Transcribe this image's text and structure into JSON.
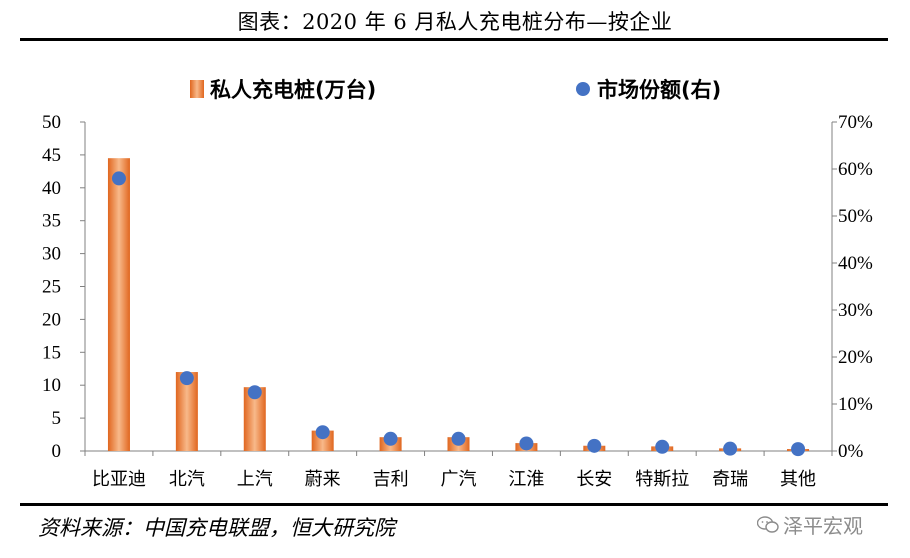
{
  "header": {
    "title": "图表：2020 年 6 月私人充电桩分布—按企业"
  },
  "footer": {
    "source": "资料来源：中国充电联盟，恒大研究院",
    "watermark": "泽平宏观"
  },
  "colors": {
    "bar": "#ed7d31",
    "bar_light": "#f8b98a",
    "marker": "#4472c4"
  },
  "chart_data": {
    "type": "bar",
    "categories": [
      "比亚迪",
      "北汽",
      "上汽",
      "蔚来",
      "吉利",
      "广汽",
      "江淮",
      "长安",
      "特斯拉",
      "奇瑞",
      "其他"
    ],
    "series": [
      {
        "name": "私人充电桩(万台)",
        "type": "bar",
        "axis": "left",
        "values": [
          44.5,
          12.0,
          9.7,
          3.1,
          2.1,
          2.1,
          1.2,
          0.8,
          0.7,
          0.4,
          0.3
        ]
      },
      {
        "name": "市场份额(右)",
        "type": "scatter",
        "axis": "right",
        "values": [
          58,
          15.5,
          12.5,
          4.0,
          2.6,
          2.6,
          1.6,
          1.1,
          0.9,
          0.5,
          0.4
        ]
      }
    ],
    "y_left": {
      "ylim": [
        0,
        50
      ],
      "ticks": [
        "0",
        "5",
        "10",
        "15",
        "20",
        "25",
        "30",
        "35",
        "40",
        "45",
        "50"
      ]
    },
    "y_right": {
      "ylim": [
        0,
        70
      ],
      "ticks": [
        "0%",
        "10%",
        "20%",
        "30%",
        "40%",
        "50%",
        "60%",
        "70%"
      ]
    },
    "legend": {
      "placement": "top",
      "items": [
        "私人充电桩(万台)",
        "市场份额(右)"
      ]
    },
    "grid": false
  }
}
